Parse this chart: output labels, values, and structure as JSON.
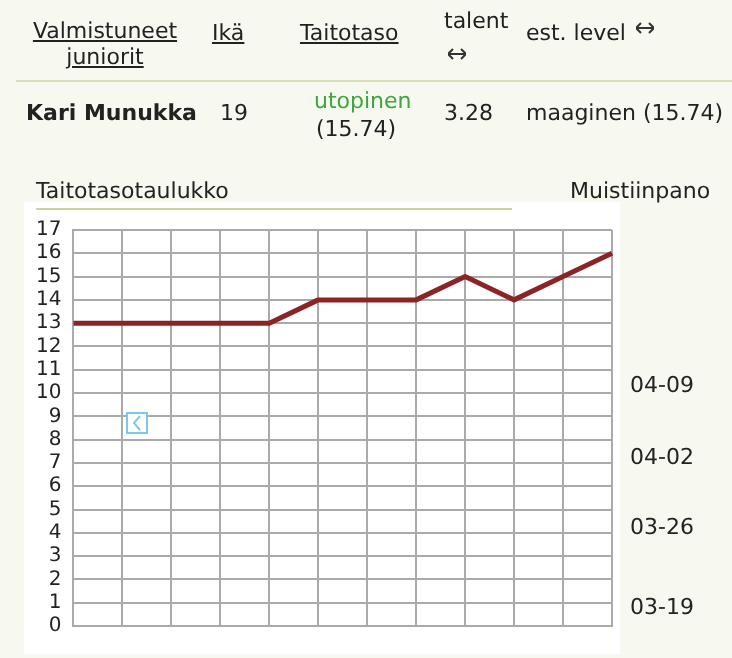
{
  "chart_data": {
    "type": "line",
    "title": "Taitotasotaulukko",
    "categories": [
      null,
      null,
      null,
      null,
      null,
      null,
      null,
      null,
      null,
      null,
      null,
      null
    ],
    "series": [
      {
        "color": "#8b2525",
        "values": [
          13,
          13,
          13,
          13,
          13,
          14,
          14,
          14,
          15,
          14,
          15,
          16
        ]
      }
    ],
    "ylim": [
      0,
      17
    ],
    "yticks": [
      0,
      1,
      2,
      3,
      4,
      5,
      6,
      7,
      8,
      9,
      10,
      11,
      12,
      13,
      14,
      15,
      16,
      17
    ],
    "grid": true,
    "legend": false,
    "marker": "none",
    "line_style": "solid",
    "tick_labels": "y",
    "annotations": [
      "Valmistuneet juniorit",
      "Ikä",
      "Taitotaso",
      "talent",
      "est. level",
      "Kari Munukka",
      "19",
      "utopinen",
      "(15.74)",
      "3.28",
      "maaginen (15.74)",
      "Muistiinpano",
      "04-09",
      "04-02",
      "03-26",
      "03-19"
    ]
  }
}
